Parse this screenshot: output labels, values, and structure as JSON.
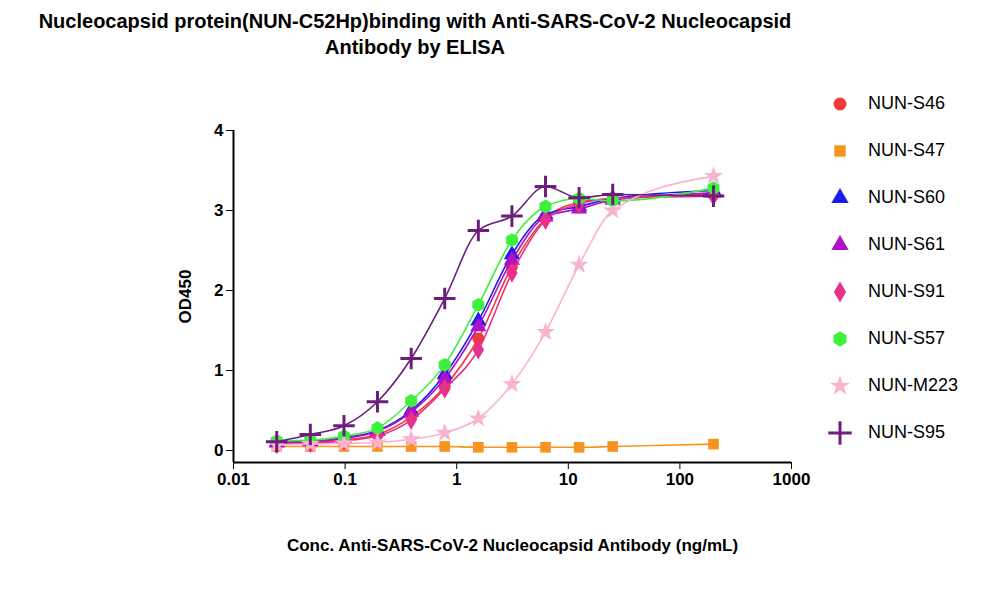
{
  "chart_data": {
    "type": "line",
    "title": "Nucleocapsid protein(NUN-C52Hp)binding with Anti-SARS-CoV-2 Nucleocapsid Antibody by ELISA",
    "x_label": "Conc. Anti-SARS-CoV-2 Nucleocapsid Antibody (ng/mL)",
    "y_label": "OD450",
    "log": "x",
    "grid": false,
    "legend": "right",
    "xlim": [
      0.01,
      1000
    ],
    "xticks": [
      0.01,
      0.1,
      1,
      10,
      100,
      1000
    ],
    "ylim": [
      -0.15,
      4
    ],
    "yticks": [
      0,
      1,
      2,
      3,
      4
    ],
    "x": [
      0.0244,
      0.0488,
      0.0977,
      0.195,
      0.391,
      0.781,
      1.5625,
      3.125,
      6.25,
      12.5,
      25,
      200
    ],
    "series": [
      {
        "name": "NUN-S46",
        "color": "#ee3a3a",
        "marker": "circle",
        "values": [
          0.09,
          0.1,
          0.13,
          0.2,
          0.42,
          0.8,
          1.4,
          2.3,
          2.9,
          3.1,
          3.15,
          3.2
        ]
      },
      {
        "name": "NUN-S47",
        "color": "#f7941d",
        "marker": "square",
        "values": [
          0.05,
          0.05,
          0.05,
          0.05,
          0.05,
          0.05,
          0.04,
          0.04,
          0.04,
          0.04,
          0.05,
          0.08
        ]
      },
      {
        "name": "NUN-S60",
        "color": "#1c1cf0",
        "marker": "triangle",
        "values": [
          0.1,
          0.12,
          0.16,
          0.25,
          0.5,
          0.95,
          1.62,
          2.45,
          2.95,
          3.05,
          3.15,
          3.25
        ]
      },
      {
        "name": "NUN-S61",
        "color": "#b010c8",
        "marker": "triangle",
        "values": [
          0.1,
          0.11,
          0.15,
          0.24,
          0.48,
          0.9,
          1.55,
          2.38,
          2.92,
          3.02,
          3.13,
          3.22
        ]
      },
      {
        "name": "NUN-S91",
        "color": "#e8318a",
        "marker": "diamond",
        "values": [
          0.08,
          0.09,
          0.12,
          0.18,
          0.38,
          0.77,
          1.26,
          2.22,
          2.88,
          3.08,
          3.15,
          3.18
        ]
      },
      {
        "name": "NUN-S57",
        "color": "#3ef03e",
        "marker": "hexagon",
        "values": [
          0.12,
          0.13,
          0.18,
          0.28,
          0.62,
          1.07,
          1.82,
          2.63,
          3.05,
          3.15,
          3.12,
          3.28
        ]
      },
      {
        "name": "NUN-M223",
        "color": "#f7b3d0",
        "marker": "star",
        "values": [
          0.07,
          0.08,
          0.09,
          0.1,
          0.14,
          0.22,
          0.4,
          0.83,
          1.48,
          2.32,
          3.0,
          3.43
        ]
      },
      {
        "name": "NUN-S95",
        "color": "#6b1f7c",
        "marker": "plus",
        "values": [
          0.11,
          0.2,
          0.31,
          0.61,
          1.15,
          1.9,
          2.75,
          2.93,
          3.3,
          3.16,
          3.2,
          3.18
        ]
      }
    ]
  }
}
